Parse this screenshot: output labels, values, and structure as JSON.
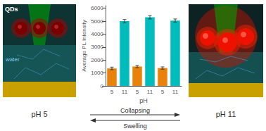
{
  "chart_data": {
    "type": "bar",
    "categories": [
      "5",
      "11",
      "5",
      "11",
      "5",
      "11"
    ],
    "values": [
      1350,
      5000,
      1500,
      5300,
      1380,
      5050
    ],
    "errors": [
      100,
      130,
      90,
      130,
      90,
      120
    ],
    "colors": [
      "#E8820A",
      "#00BCBC",
      "#E8820A",
      "#00BCBC",
      "#E8820A",
      "#00BCBC"
    ],
    "xlabel": "pH",
    "ylabel": "Average PL Intensity",
    "ylim": [
      0,
      6200
    ],
    "yticks": [
      0,
      1000,
      2000,
      3000,
      4000,
      5000,
      6000
    ],
    "grid": false,
    "annotations": [
      "QDs",
      "water",
      "pH 5",
      "pH 11",
      "Collapsing",
      "Swelling"
    ]
  }
}
